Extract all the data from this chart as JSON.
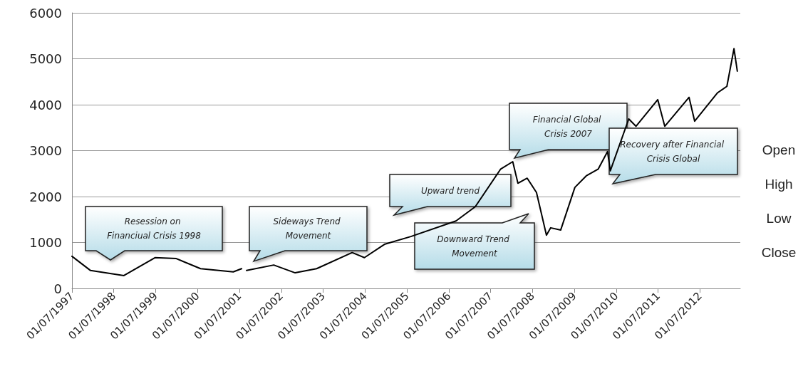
{
  "chart_data": {
    "type": "line",
    "xlim": [
      "1997-07-01",
      "2013-06-17"
    ],
    "xticks": [
      {
        "value": "1997-07-01",
        "label": "01/07/1997"
      },
      {
        "value": "1998-07-01",
        "label": "01/07/1998"
      },
      {
        "value": "1999-07-01",
        "label": "01/07/1999"
      },
      {
        "value": "2000-07-01",
        "label": "01/07/2000"
      },
      {
        "value": "2001-07-01",
        "label": "01/07/2001"
      },
      {
        "value": "2002-07-01",
        "label": "01/07/2002"
      },
      {
        "value": "2003-07-01",
        "label": "01/07/2003"
      },
      {
        "value": "2004-07-01",
        "label": "01/07/2004"
      },
      {
        "value": "2005-07-01",
        "label": "01/07/2005"
      },
      {
        "value": "2006-07-01",
        "label": "01/07/2006"
      },
      {
        "value": "2007-07-01",
        "label": "01/07/2007"
      },
      {
        "value": "2008-07-01",
        "label": "01/07/2008"
      },
      {
        "value": "2009-07-01",
        "label": "01/07/2009"
      },
      {
        "value": "2010-07-01",
        "label": "01/07/2010"
      },
      {
        "value": "2011-07-01",
        "label": "01/07/2011"
      },
      {
        "value": "2012-07-01",
        "label": "01/07/2012"
      }
    ],
    "ylim": [
      0,
      6000
    ],
    "yticks": [
      0,
      1000,
      2000,
      3000,
      4000,
      5000,
      6000
    ],
    "grid": "y",
    "x": [
      "1997-07-01",
      "1997-12-10",
      "1998-09-27",
      "1999-06-25",
      "1999-12-28",
      "2000-07-27",
      "2001-05-08",
      "2001-07-20",
      "2001-08-10",
      "2001-09-01",
      "2002-04-26",
      "2002-10-30",
      "2003-05-05",
      "2004-03-10",
      "2004-06-25",
      "2004-12-17",
      "2005-08-04",
      "2006-09-02",
      "2007-02-17",
      "2007-09-27",
      "2008-01-10",
      "2008-02-24",
      "2008-05-15",
      "2008-08-04",
      "2008-10-30",
      "2008-12-06",
      "2009-03-03",
      "2009-07-05",
      "2009-10-12",
      "2010-01-25",
      "2010-04-16",
      "2010-05-10",
      "2010-10-18",
      "2010-12-20",
      "2011-06-28",
      "2011-08-28",
      "2012-03-27",
      "2012-05-15",
      "2012-12-01",
      "2013-02-20",
      "2013-04-23",
      "2013-05-22"
    ],
    "series": [
      {
        "color": "#000000",
        "values": [
          700,
          390,
          280,
          670,
          650,
          430,
          360,
          430,
          null,
          390,
          510,
          340,
          430,
          780,
          670,
          960,
          1130,
          1470,
          1780,
          2600,
          2760,
          2290,
          2400,
          2090,
          1160,
          1320,
          1270,
          2200,
          2450,
          2600,
          2980,
          2560,
          3690,
          3530,
          4110,
          3530,
          4160,
          3640,
          4260,
          4400,
          5220,
          4730
        ]
      }
    ],
    "annotations": [
      "Resession on Financiual Crisis 1998",
      "Sideways Trend Movement",
      "Upward trend",
      "Downward Trend Movement",
      "Financial Global Crisis 2007",
      "Recovery after Financial Crisis Global",
      "Open",
      "High",
      "Low",
      "Close"
    ]
  }
}
